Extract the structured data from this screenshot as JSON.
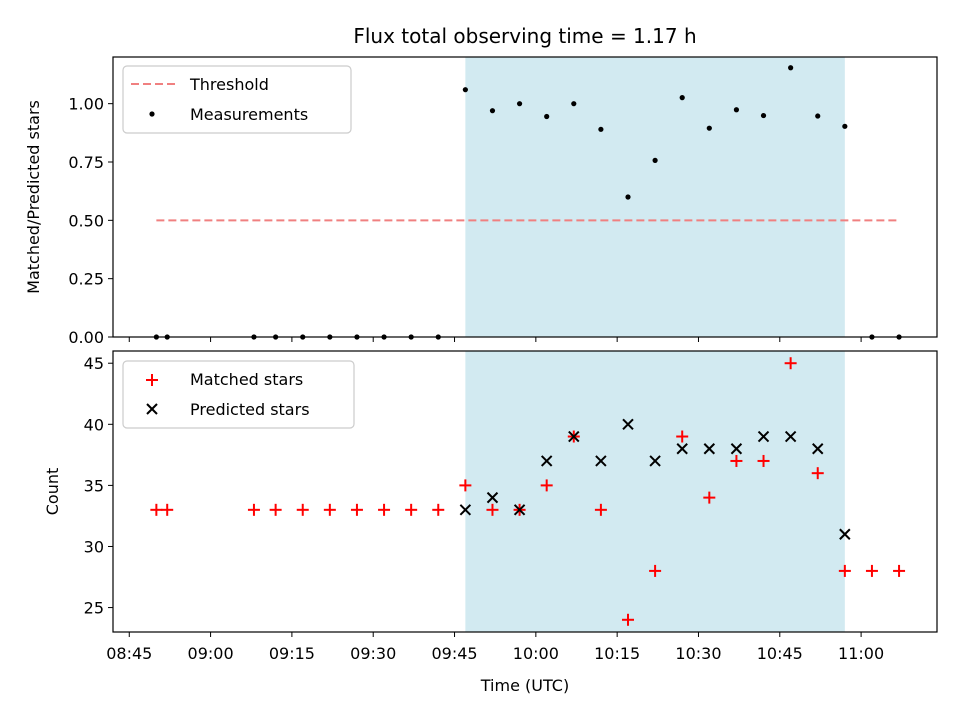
{
  "chart_data": [
    {
      "type": "scatter",
      "title": "Flux total observing time = 1.17 h",
      "xlabel": "",
      "ylabel": "Matched/Predicted stars",
      "ylim": [
        0,
        1.2
      ],
      "yticks": [
        "0.00",
        "0.25",
        "0.50",
        "0.75",
        "1.00"
      ],
      "grid": false,
      "legend_position": "top-left",
      "shaded_span": {
        "start": "09:47",
        "end": "10:57",
        "color": "#add8e6"
      },
      "threshold": {
        "name": "Threshold",
        "value": 0.5,
        "x_start": "08:50",
        "x_end": "11:07",
        "color": "#f08080",
        "style": "dashed"
      },
      "series": [
        {
          "name": "Measurements",
          "marker": "dot",
          "color": "#000000",
          "points": [
            {
              "x": "08:50",
              "y": 0.0
            },
            {
              "x": "08:52",
              "y": 0.0
            },
            {
              "x": "09:08",
              "y": 0.0
            },
            {
              "x": "09:12",
              "y": 0.0
            },
            {
              "x": "09:17",
              "y": 0.0
            },
            {
              "x": "09:22",
              "y": 0.0
            },
            {
              "x": "09:27",
              "y": 0.0
            },
            {
              "x": "09:32",
              "y": 0.0
            },
            {
              "x": "09:37",
              "y": 0.0
            },
            {
              "x": "09:42",
              "y": 0.0
            },
            {
              "x": "09:47",
              "y": 1.06
            },
            {
              "x": "09:52",
              "y": 0.97
            },
            {
              "x": "09:57",
              "y": 1.0
            },
            {
              "x": "10:02",
              "y": 0.945
            },
            {
              "x": "10:07",
              "y": 1.0
            },
            {
              "x": "10:12",
              "y": 0.89
            },
            {
              "x": "10:17",
              "y": 0.6
            },
            {
              "x": "10:22",
              "y": 0.757
            },
            {
              "x": "10:27",
              "y": 1.026
            },
            {
              "x": "10:32",
              "y": 0.895
            },
            {
              "x": "10:37",
              "y": 0.974
            },
            {
              "x": "10:42",
              "y": 0.949
            },
            {
              "x": "10:47",
              "y": 1.154
            },
            {
              "x": "10:52",
              "y": 0.947
            },
            {
              "x": "10:57",
              "y": 0.903
            },
            {
              "x": "11:02",
              "y": 0.0
            },
            {
              "x": "11:07",
              "y": 0.0
            }
          ]
        }
      ]
    },
    {
      "type": "scatter",
      "title": "",
      "xlabel": "Time (UTC)",
      "ylabel": "Count",
      "ylim": [
        23,
        46
      ],
      "yticks": [
        "25",
        "30",
        "35",
        "40",
        "45"
      ],
      "xticks": [
        "08:45",
        "09:00",
        "09:15",
        "09:30",
        "09:45",
        "10:00",
        "10:15",
        "10:30",
        "10:45",
        "11:00"
      ],
      "grid": false,
      "legend_position": "top-left",
      "shaded_span": {
        "start": "09:47",
        "end": "10:57",
        "color": "#add8e6"
      },
      "series": [
        {
          "name": "Matched stars",
          "marker": "plus",
          "color": "#ff0000",
          "points": [
            {
              "x": "08:50",
              "y": 33
            },
            {
              "x": "08:52",
              "y": 33
            },
            {
              "x": "09:08",
              "y": 33
            },
            {
              "x": "09:12",
              "y": 33
            },
            {
              "x": "09:17",
              "y": 33
            },
            {
              "x": "09:22",
              "y": 33
            },
            {
              "x": "09:27",
              "y": 33
            },
            {
              "x": "09:32",
              "y": 33
            },
            {
              "x": "09:37",
              "y": 33
            },
            {
              "x": "09:42",
              "y": 33
            },
            {
              "x": "09:47",
              "y": 35
            },
            {
              "x": "09:52",
              "y": 33
            },
            {
              "x": "09:57",
              "y": 33
            },
            {
              "x": "10:02",
              "y": 35
            },
            {
              "x": "10:07",
              "y": 39
            },
            {
              "x": "10:12",
              "y": 33
            },
            {
              "x": "10:17",
              "y": 24
            },
            {
              "x": "10:22",
              "y": 28
            },
            {
              "x": "10:27",
              "y": 39
            },
            {
              "x": "10:32",
              "y": 34
            },
            {
              "x": "10:37",
              "y": 37
            },
            {
              "x": "10:42",
              "y": 37
            },
            {
              "x": "10:47",
              "y": 45
            },
            {
              "x": "10:52",
              "y": 36
            },
            {
              "x": "10:57",
              "y": 28
            },
            {
              "x": "11:02",
              "y": 28
            },
            {
              "x": "11:07",
              "y": 28
            }
          ]
        },
        {
          "name": "Predicted stars",
          "marker": "x",
          "color": "#000000",
          "points": [
            {
              "x": "09:47",
              "y": 33
            },
            {
              "x": "09:52",
              "y": 34
            },
            {
              "x": "09:57",
              "y": 33
            },
            {
              "x": "10:02",
              "y": 37
            },
            {
              "x": "10:07",
              "y": 39
            },
            {
              "x": "10:12",
              "y": 37
            },
            {
              "x": "10:17",
              "y": 40
            },
            {
              "x": "10:22",
              "y": 37
            },
            {
              "x": "10:27",
              "y": 38
            },
            {
              "x": "10:32",
              "y": 38
            },
            {
              "x": "10:37",
              "y": 38
            },
            {
              "x": "10:42",
              "y": 39
            },
            {
              "x": "10:47",
              "y": 39
            },
            {
              "x": "10:52",
              "y": 38
            },
            {
              "x": "10:57",
              "y": 31
            }
          ]
        }
      ]
    }
  ]
}
